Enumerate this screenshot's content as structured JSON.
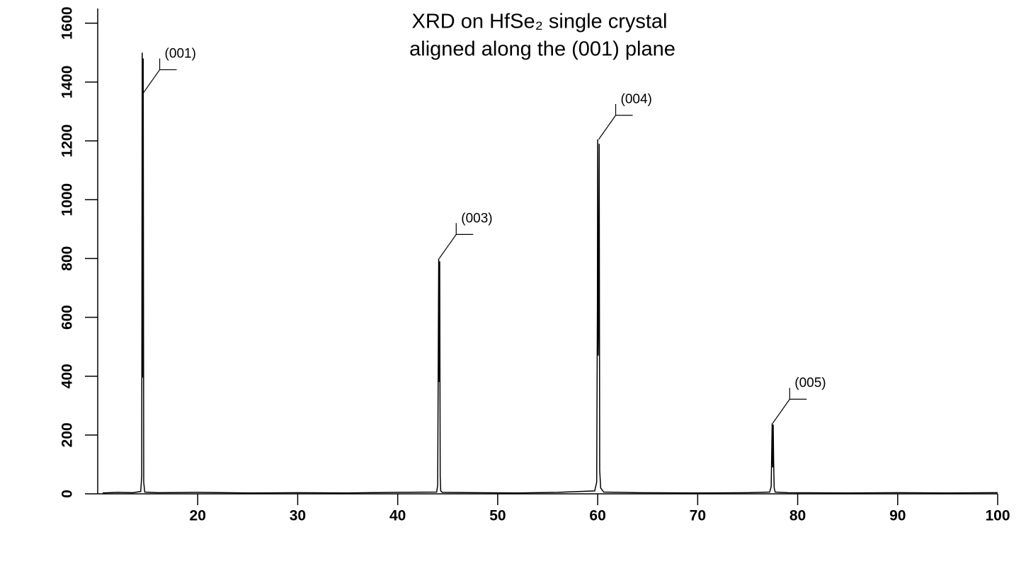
{
  "chart_data": {
    "type": "line",
    "title": [
      "XRD on HfSe₂ single crystal",
      "aligned along the (001) plane"
    ],
    "x": [
      10.5,
      12,
      13.5,
      14.3,
      14.4,
      14.45,
      14.5,
      14.55,
      14.6,
      14.7,
      16,
      20,
      25,
      30,
      35,
      40,
      43.9,
      44.0,
      44.1,
      44.15,
      44.2,
      44.25,
      44.3,
      44.45,
      48,
      52,
      56,
      59.7,
      59.9,
      59.97,
      60.0,
      60.05,
      60.1,
      60.15,
      60.2,
      60.3,
      60.6,
      64,
      70,
      75,
      77.2,
      77.35,
      77.45,
      77.5,
      77.55,
      77.6,
      77.65,
      77.75,
      79,
      85,
      90,
      95,
      100
    ],
    "series": [
      {
        "name": "XRD",
        "color": "#000000",
        "values": [
          3,
          5,
          4,
          8,
          60,
          1500,
          395,
          1480,
          40,
          6,
          4,
          5,
          3,
          4,
          3,
          5,
          6,
          30,
          800,
          380,
          790,
          60,
          10,
          5,
          4,
          3,
          5,
          10,
          40,
          640,
          1205,
          470,
          610,
          1190,
          80,
          20,
          6,
          4,
          3,
          4,
          6,
          25,
          240,
          90,
          235,
          100,
          20,
          6,
          4,
          3,
          4,
          3,
          4
        ]
      }
    ],
    "xlim": [
      10,
      100
    ],
    "ylim": [
      0,
      1650
    ],
    "xticks": [
      20,
      30,
      40,
      50,
      60,
      70,
      80,
      90,
      100
    ],
    "yticks": [
      0,
      200,
      400,
      600,
      800,
      1000,
      1200,
      1400,
      1600
    ],
    "annotations": [
      {
        "text": "(001)",
        "x": 14.5,
        "y": 1360
      },
      {
        "text": "(003)",
        "x": 44.15,
        "y": 800
      },
      {
        "text": "(004)",
        "x": 60.1,
        "y": 1205
      },
      {
        "text": "(005)",
        "x": 77.5,
        "y": 240
      }
    ]
  }
}
